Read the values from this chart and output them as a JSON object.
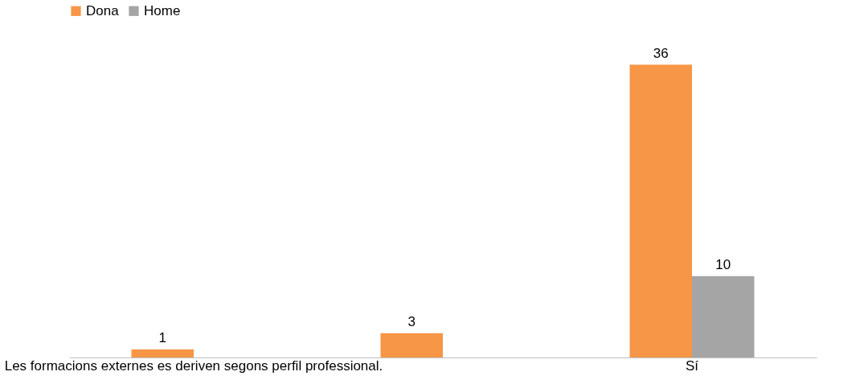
{
  "chart_data": {
    "type": "bar",
    "categories": [
      "Les formacions externes es deriven segons perfil professional.",
      null,
      "Sí"
    ],
    "series": [
      {
        "name": "Dona",
        "color": "#f79646",
        "values": [
          1,
          3,
          36
        ]
      },
      {
        "name": "Home",
        "color": "#a5a5a5",
        "values": [
          null,
          null,
          10
        ]
      }
    ],
    "data_labels": true,
    "legend": "top",
    "grid": false
  }
}
